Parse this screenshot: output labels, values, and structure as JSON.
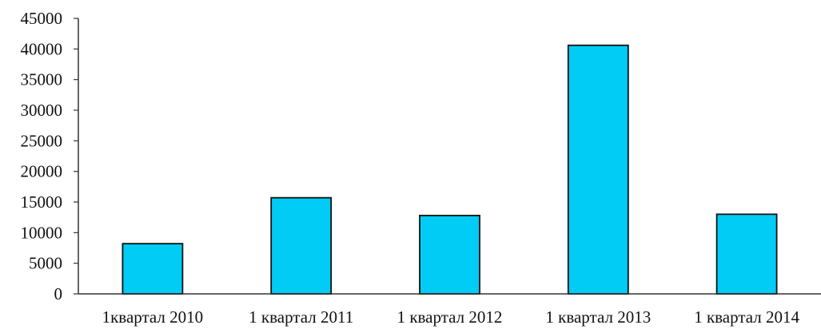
{
  "chart_data": {
    "type": "bar",
    "title": "",
    "xlabel": "",
    "ylabel": "",
    "categories": [
      "1квартал 2010",
      "1 квартал 2011",
      "1 квартал 2012",
      "1 квартал 2013",
      "1 квартал 2014"
    ],
    "values": [
      8200,
      15700,
      12800,
      40600,
      13000
    ],
    "ylim": [
      0,
      45000
    ],
    "yticks": [
      0,
      5000,
      10000,
      15000,
      20000,
      25000,
      30000,
      35000,
      40000,
      45000
    ],
    "grid": false,
    "legend": "none",
    "bar_color": "#00ccf5"
  }
}
